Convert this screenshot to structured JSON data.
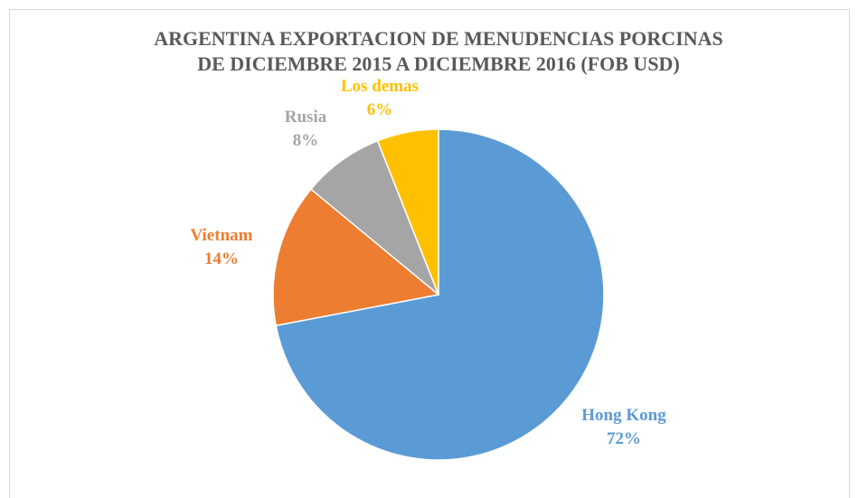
{
  "chart_data": {
    "type": "pie",
    "title": [
      "ARGENTINA EXPORTACION DE MENUDENCIAS PORCINAS",
      "DE DICIEMBRE 2015 A DICIEMBRE 2016 (FOB USD)"
    ],
    "categories": [
      "Hong Kong",
      "Vietnam",
      "Rusia",
      "Los demas"
    ],
    "values": [
      72,
      14,
      8,
      6
    ],
    "value_labels": [
      "72%",
      "14%",
      "8%",
      "6%"
    ],
    "colors": [
      "#5b9bd5",
      "#ed7d31",
      "#a5a5a5",
      "#ffc000"
    ]
  }
}
